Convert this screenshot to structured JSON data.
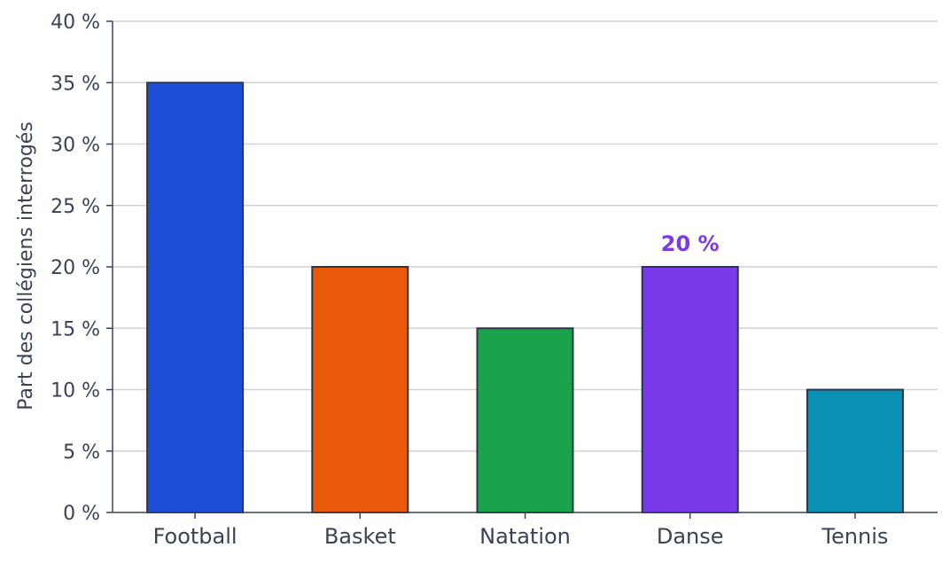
{
  "chart_data": {
    "type": "bar",
    "title": "",
    "xlabel": "",
    "ylabel": "Part des collégiens interrogés",
    "categories": [
      "Football",
      "Basket",
      "Natation",
      "Danse",
      "Tennis"
    ],
    "values": [
      35,
      20,
      15,
      20,
      10
    ],
    "unit_suffix": " %",
    "ylim": [
      0,
      40
    ],
    "yticks": [
      0,
      5,
      10,
      15,
      20,
      25,
      30,
      35,
      40
    ],
    "ytick_labels": [
      "0 %",
      "5 %",
      "10 %",
      "15 %",
      "20 %",
      "25 %",
      "30 %",
      "35 %",
      "40 %"
    ],
    "grid": true,
    "bar_colors": [
      "#1f4fd8",
      "#e8590c",
      "#1aa34a",
      "#7a3ae8",
      "#0b91b5"
    ],
    "annotations": [
      {
        "category": "Danse",
        "text": "20 %",
        "color": "#7a3ae8"
      }
    ],
    "colors": {
      "axis": "#3a4356",
      "grid": "#cfd2da",
      "bar_edge": "#2e3545"
    }
  }
}
